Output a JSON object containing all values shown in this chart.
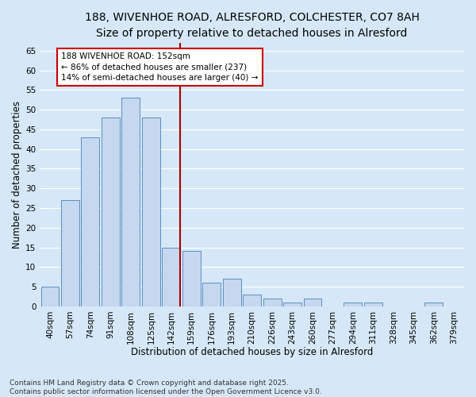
{
  "title": "188, WIVENHOE ROAD, ALRESFORD, COLCHESTER, CO7 8AH",
  "subtitle": "Size of property relative to detached houses in Alresford",
  "xlabel": "Distribution of detached houses by size in Alresford",
  "ylabel": "Number of detached properties",
  "categories": [
    "40sqm",
    "57sqm",
    "74sqm",
    "91sqm",
    "108sqm",
    "125sqm",
    "142sqm",
    "159sqm",
    "176sqm",
    "193sqm",
    "210sqm",
    "226sqm",
    "243sqm",
    "260sqm",
    "277sqm",
    "294sqm",
    "311sqm",
    "328sqm",
    "345sqm",
    "362sqm",
    "379sqm"
  ],
  "values": [
    5,
    27,
    43,
    48,
    53,
    48,
    15,
    14,
    6,
    7,
    3,
    2,
    1,
    2,
    0,
    1,
    1,
    0,
    0,
    1,
    0
  ],
  "bar_color": "#c5d8ef",
  "bar_edge_color": "#5b8ec4",
  "annotation_text": "188 WIVENHOE ROAD: 152sqm\n← 86% of detached houses are smaller (237)\n14% of semi-detached houses are larger (40) →",
  "annotation_box_color": "#ffffff",
  "annotation_box_edge": "#cc0000",
  "line_color": "#aa0000",
  "ylim": [
    0,
    67
  ],
  "yticks": [
    0,
    5,
    10,
    15,
    20,
    25,
    30,
    35,
    40,
    45,
    50,
    55,
    60,
    65
  ],
  "background_color": "#d6e8f7",
  "plot_background": "#d6e8f7",
  "grid_color": "#ffffff",
  "footer": "Contains HM Land Registry data © Crown copyright and database right 2025.\nContains public sector information licensed under the Open Government Licence v3.0.",
  "title_fontsize": 10,
  "subtitle_fontsize": 9,
  "xlabel_fontsize": 8.5,
  "ylabel_fontsize": 8.5,
  "tick_fontsize": 7.5,
  "annotation_fontsize": 7.5,
  "footer_fontsize": 6.5
}
